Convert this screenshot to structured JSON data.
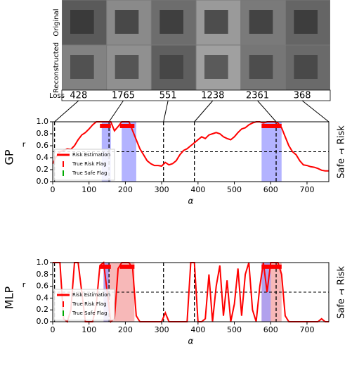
{
  "image_strip": {
    "row_labels": [
      "Original",
      "Reconstructed"
    ],
    "loss_label": "Loss",
    "losses": [
      "428",
      "1765",
      "551",
      "1238",
      "2361",
      "368"
    ],
    "links": [
      5,
      155,
      305,
      390,
      615,
      760
    ]
  },
  "chart_data": [
    {
      "type": "line",
      "model": "GP",
      "ylabel": "r",
      "xlabel": "α",
      "side_labels": {
        "risk": "Risk",
        "tau": "τ",
        "safe": "Safe"
      },
      "xlim": [
        0,
        760
      ],
      "ylim": [
        0,
        1
      ],
      "xticks": [
        0,
        100,
        200,
        300,
        400,
        500,
        600,
        700
      ],
      "yticks": [
        {
          "value": 0,
          "label": "0.0"
        },
        {
          "value": 0.2,
          "label": "0.2"
        },
        {
          "value": 0.4,
          "label": "0.4"
        },
        {
          "value": 0.6,
          "label": "0.6"
        },
        {
          "value": 0.8,
          "label": "0.8"
        },
        {
          "value": 1,
          "label": "1.0"
        }
      ],
      "threshold": 0.5,
      "vlines": [
        5,
        155,
        305,
        390,
        615
      ],
      "shaded": [
        {
          "color": "#9999ff",
          "spans": [
            [
              135,
              160
            ],
            [
              190,
              230
            ],
            [
              575,
              630
            ]
          ]
        }
      ],
      "risk_flag": {
        "name": "True Risk Flag",
        "color": "#ff0000",
        "y": 0.93,
        "spans": [
          [
            130,
            160
          ],
          [
            185,
            225
          ],
          [
            575,
            630
          ]
        ]
      },
      "safe_flag": {
        "name": "True Safe Flag",
        "color": "#00aa00"
      },
      "legend": "lower left",
      "x": [
        0,
        10,
        20,
        30,
        40,
        50,
        60,
        70,
        80,
        90,
        100,
        110,
        120,
        130,
        140,
        150,
        160,
        170,
        180,
        190,
        200,
        210,
        220,
        230,
        240,
        250,
        260,
        270,
        280,
        290,
        300,
        310,
        320,
        330,
        340,
        350,
        360,
        370,
        380,
        390,
        400,
        410,
        420,
        430,
        440,
        450,
        460,
        470,
        480,
        490,
        500,
        510,
        520,
        530,
        540,
        550,
        560,
        570,
        580,
        590,
        600,
        610,
        620,
        630,
        640,
        650,
        660,
        670,
        680,
        690,
        700,
        710,
        720,
        730,
        740,
        750,
        760
      ],
      "series": [
        {
          "name": "Risk Estimation",
          "color": "#ff0000",
          "values": [
            0.3,
            0.42,
            0.5,
            0.52,
            0.55,
            0.54,
            0.6,
            0.7,
            0.78,
            0.82,
            0.88,
            0.95,
            1.0,
            1.0,
            1.0,
            1.0,
            1.0,
            0.85,
            0.92,
            1.0,
            1.0,
            1.0,
            0.85,
            0.7,
            0.55,
            0.45,
            0.35,
            0.3,
            0.27,
            0.27,
            0.26,
            0.32,
            0.28,
            0.3,
            0.35,
            0.45,
            0.52,
            0.55,
            0.6,
            0.65,
            0.7,
            0.75,
            0.72,
            0.78,
            0.8,
            0.82,
            0.8,
            0.75,
            0.72,
            0.7,
            0.75,
            0.82,
            0.88,
            0.9,
            0.95,
            0.98,
            1.0,
            1.0,
            0.98,
            1.0,
            1.0,
            1.0,
            0.98,
            0.9,
            0.75,
            0.6,
            0.5,
            0.45,
            0.35,
            0.28,
            0.27,
            0.25,
            0.24,
            0.22,
            0.19,
            0.18,
            0.18
          ]
        }
      ]
    },
    {
      "type": "line",
      "model": "MLP",
      "ylabel": "r",
      "xlabel": "α",
      "side_labels": {
        "risk": "Risk",
        "tau": "τ",
        "safe": "Safe"
      },
      "xlim": [
        0,
        760
      ],
      "ylim": [
        0,
        1
      ],
      "xticks": [
        0,
        100,
        200,
        300,
        400,
        500,
        600,
        700
      ],
      "yticks": [
        {
          "value": 0,
          "label": "0.0"
        },
        {
          "value": 0.2,
          "label": "0.2"
        },
        {
          "value": 0.4,
          "label": "0.4"
        },
        {
          "value": 0.6,
          "label": "0.6"
        },
        {
          "value": 0.8,
          "label": "0.8"
        },
        {
          "value": 1,
          "label": "1.0"
        }
      ],
      "threshold": 0.5,
      "vlines": [
        5,
        155,
        305,
        390,
        615
      ],
      "shaded": [
        {
          "color": "#f4a0a0",
          "spans": [
            [
              140,
              225
            ],
            [
              575,
              630
            ]
          ]
        },
        {
          "color": "#9999ff",
          "spans": [
            [
              140,
              155
            ],
            [
              575,
              600
            ]
          ]
        }
      ],
      "risk_flag": {
        "name": "True Risk Flag",
        "color": "#ff0000",
        "y": 0.93,
        "spans": [
          [
            130,
            160
          ],
          [
            185,
            225
          ],
          [
            575,
            630
          ]
        ]
      },
      "safe_flag": {
        "name": "True Safe Flag",
        "color": "#00aa00"
      },
      "legend": "lower left",
      "x": [
        0,
        10,
        20,
        30,
        40,
        50,
        60,
        70,
        80,
        90,
        100,
        110,
        120,
        130,
        140,
        150,
        160,
        170,
        180,
        190,
        200,
        210,
        220,
        230,
        240,
        250,
        260,
        270,
        280,
        290,
        300,
        310,
        320,
        330,
        340,
        350,
        360,
        370,
        380,
        390,
        400,
        410,
        420,
        430,
        440,
        450,
        460,
        470,
        480,
        490,
        500,
        510,
        520,
        530,
        540,
        550,
        560,
        570,
        580,
        590,
        600,
        610,
        620,
        630,
        640,
        650,
        660,
        670,
        680,
        690,
        700,
        710,
        720,
        730,
        740,
        750,
        760
      ],
      "series": [
        {
          "name": "Risk Estimation",
          "color": "#ff0000",
          "values": [
            1.0,
            1.0,
            1.0,
            0.05,
            0.0,
            0.2,
            1.0,
            1.0,
            0.5,
            0.0,
            0.0,
            0.0,
            0.3,
            0.95,
            1.0,
            0.5,
            0.0,
            0.05,
            0.9,
            1.0,
            1.0,
            1.0,
            0.9,
            0.1,
            0.0,
            0.0,
            0.0,
            0.0,
            0.0,
            0.0,
            0.0,
            0.15,
            0.0,
            0.0,
            0.0,
            0.0,
            0.0,
            0.0,
            1.0,
            1.0,
            0.0,
            0.0,
            0.05,
            0.8,
            0.0,
            0.6,
            0.95,
            0.1,
            0.7,
            0.0,
            0.3,
            0.9,
            0.1,
            0.8,
            1.0,
            0.2,
            0.0,
            0.6,
            1.0,
            0.5,
            1.0,
            1.0,
            1.0,
            0.8,
            0.1,
            0.0,
            0.0,
            0.0,
            0.0,
            0.0,
            0.0,
            0.0,
            0.0,
            0.0,
            0.05,
            0.0,
            0.0
          ]
        }
      ]
    }
  ]
}
